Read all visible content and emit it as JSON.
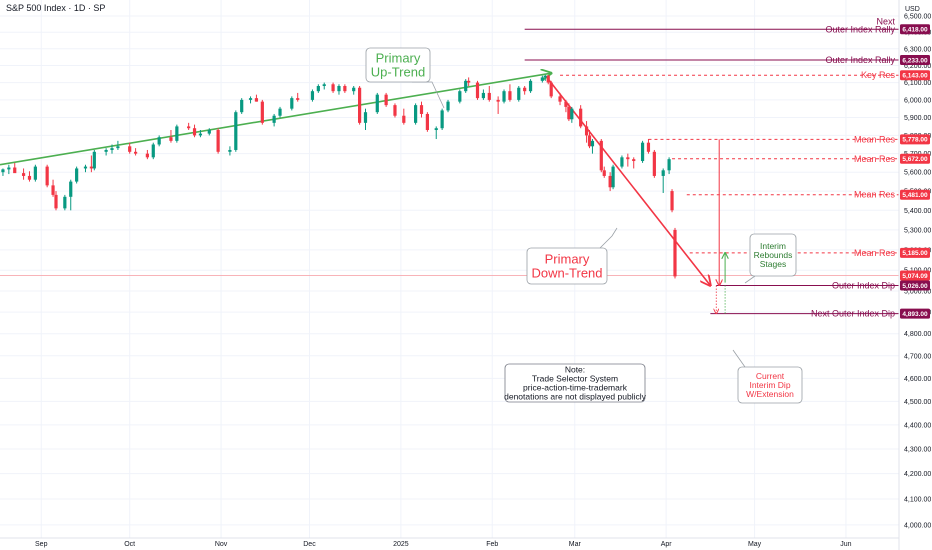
{
  "header": {
    "title": "S&P 500 Index · 1D · SP",
    "currency": "USD"
  },
  "colors": {
    "up": "#089981",
    "down": "#f23645",
    "green_line": "#4caf50",
    "red_line": "#f23645",
    "maroon": "#880e4f",
    "tag_red": "#f23645",
    "grid": "#f0f3fa"
  },
  "chart_data": {
    "type": "candlestick",
    "title": "S&P 500 Index · 1D · SP",
    "ylabel": "USD",
    "ylim": [
      3950,
      6600
    ],
    "y_ticks": [
      {
        "v": 4000,
        "label": "4,000.00"
      },
      {
        "v": 4100,
        "label": "4,100.00"
      },
      {
        "v": 4200,
        "label": "4,200.00"
      },
      {
        "v": 4300,
        "label": "4,300.00"
      },
      {
        "v": 4400,
        "label": "4,400.00"
      },
      {
        "v": 4500,
        "label": "4,500.00"
      },
      {
        "v": 4600,
        "label": "4,600.00"
      },
      {
        "v": 4700,
        "label": "4,700.00"
      },
      {
        "v": 4800,
        "label": "4,800.00"
      },
      {
        "v": 4900,
        "label": "4,900.00"
      },
      {
        "v": 5000,
        "label": "5,000.00"
      },
      {
        "v": 5100,
        "label": "5,100.00"
      },
      {
        "v": 5200,
        "label": "5,200.00"
      },
      {
        "v": 5300,
        "label": "5,300.00"
      },
      {
        "v": 5400,
        "label": "5,400.00"
      },
      {
        "v": 5500,
        "label": "5,500.00"
      },
      {
        "v": 5600,
        "label": "5,600.00"
      },
      {
        "v": 5700,
        "label": "5,700.00"
      },
      {
        "v": 5800,
        "label": "5,800.00"
      },
      {
        "v": 5900,
        "label": "5,900.00"
      },
      {
        "v": 6000,
        "label": "6,000.00"
      },
      {
        "v": 6100,
        "label": "6,100.00"
      },
      {
        "v": 6200,
        "label": "6,200.00"
      },
      {
        "v": 6300,
        "label": "6,300.00"
      },
      {
        "v": 6400,
        "label": "6,400.00"
      },
      {
        "v": 6500,
        "label": "6,500.00"
      }
    ],
    "x_ticks": [
      {
        "d": "2024-09-01",
        "label": "Sep"
      },
      {
        "d": "2024-10-01",
        "label": "Oct"
      },
      {
        "d": "2024-11-01",
        "label": "Nov"
      },
      {
        "d": "2024-12-01",
        "label": "Dec"
      },
      {
        "d": "2025-01-01",
        "label": "2025"
      },
      {
        "d": "2025-02-01",
        "label": "Feb"
      },
      {
        "d": "2025-03-01",
        "label": "Mar"
      },
      {
        "d": "2025-04-01",
        "label": "Apr"
      },
      {
        "d": "2025-05-01",
        "label": "May"
      },
      {
        "d": "2025-06-01",
        "label": "Jun"
      }
    ],
    "xlim": [
      "2024-08-18",
      "2025-06-19"
    ],
    "candles": [
      [
        "2024-08-19",
        5600,
        5620,
        5580,
        5615
      ],
      [
        "2024-08-21",
        5615,
        5640,
        5590,
        5625
      ],
      [
        "2024-08-23",
        5625,
        5650,
        5600,
        5595
      ],
      [
        "2024-08-26",
        5595,
        5620,
        5560,
        5580
      ],
      [
        "2024-08-28",
        5580,
        5605,
        5550,
        5560
      ],
      [
        "2024-08-30",
        5560,
        5640,
        5550,
        5630
      ],
      [
        "2024-09-03",
        5630,
        5640,
        5520,
        5530
      ],
      [
        "2024-09-05",
        5530,
        5560,
        5470,
        5480
      ],
      [
        "2024-09-06",
        5480,
        5500,
        5400,
        5410
      ],
      [
        "2024-09-09",
        5410,
        5480,
        5400,
        5470
      ],
      [
        "2024-09-11",
        5470,
        5560,
        5400,
        5550
      ],
      [
        "2024-09-13",
        5550,
        5630,
        5540,
        5620
      ],
      [
        "2024-09-16",
        5620,
        5640,
        5600,
        5630
      ],
      [
        "2024-09-18",
        5630,
        5690,
        5600,
        5620
      ],
      [
        "2024-09-19",
        5620,
        5720,
        5610,
        5710
      ],
      [
        "2024-09-23",
        5710,
        5730,
        5690,
        5720
      ],
      [
        "2024-09-25",
        5720,
        5750,
        5700,
        5730
      ],
      [
        "2024-09-27",
        5730,
        5770,
        5720,
        5740
      ],
      [
        "2024-10-01",
        5740,
        5760,
        5700,
        5710
      ],
      [
        "2024-10-03",
        5710,
        5730,
        5690,
        5700
      ],
      [
        "2024-10-07",
        5700,
        5720,
        5670,
        5680
      ],
      [
        "2024-10-09",
        5680,
        5760,
        5670,
        5750
      ],
      [
        "2024-10-11",
        5750,
        5800,
        5740,
        5790
      ],
      [
        "2024-10-15",
        5790,
        5830,
        5760,
        5770
      ],
      [
        "2024-10-17",
        5770,
        5860,
        5760,
        5850
      ],
      [
        "2024-10-21",
        5850,
        5870,
        5830,
        5840
      ],
      [
        "2024-10-23",
        5840,
        5860,
        5790,
        5800
      ],
      [
        "2024-10-25",
        5800,
        5830,
        5790,
        5810
      ],
      [
        "2024-10-28",
        5810,
        5840,
        5800,
        5830
      ],
      [
        "2024-10-31",
        5830,
        5840,
        5700,
        5710
      ],
      [
        "2024-11-04",
        5710,
        5740,
        5690,
        5720
      ],
      [
        "2024-11-06",
        5720,
        5940,
        5710,
        5930
      ],
      [
        "2024-11-08",
        5930,
        6010,
        5920,
        6000
      ],
      [
        "2024-11-11",
        6000,
        6020,
        5980,
        6010
      ],
      [
        "2024-11-13",
        6010,
        6030,
        5990,
        5990
      ],
      [
        "2024-11-15",
        5990,
        6000,
        5860,
        5870
      ],
      [
        "2024-11-19",
        5870,
        5920,
        5850,
        5910
      ],
      [
        "2024-11-21",
        5910,
        5960,
        5900,
        5950
      ],
      [
        "2024-11-25",
        5950,
        6020,
        5940,
        6010
      ],
      [
        "2024-11-27",
        6010,
        6040,
        5990,
        6000
      ],
      [
        "2024-12-02",
        6000,
        6060,
        5990,
        6050
      ],
      [
        "2024-12-04",
        6050,
        6090,
        6040,
        6080
      ],
      [
        "2024-12-06",
        6080,
        6100,
        6060,
        6090
      ],
      [
        "2024-12-09",
        6090,
        6100,
        6040,
        6050
      ],
      [
        "2024-12-11",
        6050,
        6090,
        6030,
        6080
      ],
      [
        "2024-12-13",
        6080,
        6090,
        6040,
        6050
      ],
      [
        "2024-12-16",
        6050,
        6080,
        6030,
        6070
      ],
      [
        "2024-12-18",
        6070,
        6080,
        5860,
        5870
      ],
      [
        "2024-12-20",
        5870,
        5950,
        5830,
        5930
      ],
      [
        "2024-12-24",
        5930,
        6040,
        5920,
        6030
      ],
      [
        "2024-12-27",
        6030,
        6040,
        5960,
        5970
      ],
      [
        "2024-12-30",
        5970,
        5980,
        5900,
        5910
      ],
      [
        "2025-01-02",
        5910,
        5950,
        5860,
        5870
      ],
      [
        "2025-01-06",
        5870,
        5980,
        5860,
        5970
      ],
      [
        "2025-01-08",
        5970,
        5990,
        5900,
        5920
      ],
      [
        "2025-01-10",
        5920,
        5930,
        5820,
        5830
      ],
      [
        "2025-01-13",
        5830,
        5850,
        5780,
        5840
      ],
      [
        "2025-01-15",
        5840,
        5950,
        5830,
        5940
      ],
      [
        "2025-01-17",
        5940,
        6000,
        5930,
        5990
      ],
      [
        "2025-01-21",
        5990,
        6060,
        5980,
        6050
      ],
      [
        "2025-01-23",
        6050,
        6120,
        6040,
        6110
      ],
      [
        "2025-01-24",
        6110,
        6130,
        6080,
        6100
      ],
      [
        "2025-01-27",
        6100,
        6110,
        6000,
        6010
      ],
      [
        "2025-01-29",
        6010,
        6060,
        6000,
        6040
      ],
      [
        "2025-01-31",
        6040,
        6080,
        5990,
        6000
      ],
      [
        "2025-02-03",
        6000,
        6020,
        5920,
        5990
      ],
      [
        "2025-02-05",
        5990,
        6060,
        5980,
        6050
      ],
      [
        "2025-02-07",
        6050,
        6090,
        5990,
        6000
      ],
      [
        "2025-02-10",
        6000,
        6080,
        5990,
        6070
      ],
      [
        "2025-02-12",
        6070,
        6080,
        6030,
        6050
      ],
      [
        "2025-02-14",
        6050,
        6120,
        6040,
        6110
      ],
      [
        "2025-02-18",
        6110,
        6140,
        6100,
        6130
      ],
      [
        "2025-02-19",
        6130,
        6145,
        6110,
        6140
      ],
      [
        "2025-02-20",
        6140,
        6145,
        6090,
        6100
      ],
      [
        "2025-02-21",
        6100,
        6110,
        6010,
        6020
      ],
      [
        "2025-02-24",
        6020,
        6040,
        5970,
        5990
      ],
      [
        "2025-02-26",
        5990,
        6000,
        5930,
        5960
      ],
      [
        "2025-02-27",
        5960,
        5980,
        5880,
        5890
      ],
      [
        "2025-02-28",
        5890,
        5960,
        5870,
        5950
      ],
      [
        "2025-03-03",
        5950,
        5970,
        5840,
        5850
      ],
      [
        "2025-03-05",
        5850,
        5880,
        5760,
        5800
      ],
      [
        "2025-03-06",
        5800,
        5830,
        5730,
        5740
      ],
      [
        "2025-03-07",
        5740,
        5780,
        5700,
        5770
      ],
      [
        "2025-03-10",
        5770,
        5780,
        5600,
        5610
      ],
      [
        "2025-03-11",
        5610,
        5630,
        5570,
        5580
      ],
      [
        "2025-03-13",
        5580,
        5600,
        5500,
        5520
      ],
      [
        "2025-03-14",
        5520,
        5640,
        5510,
        5630
      ],
      [
        "2025-03-17",
        5630,
        5690,
        5620,
        5680
      ],
      [
        "2025-03-19",
        5680,
        5700,
        5630,
        5670
      ],
      [
        "2025-03-21",
        5670,
        5680,
        5620,
        5660
      ],
      [
        "2025-03-24",
        5660,
        5770,
        5650,
        5760
      ],
      [
        "2025-03-26",
        5760,
        5780,
        5700,
        5710
      ],
      [
        "2025-03-28",
        5710,
        5720,
        5570,
        5580
      ],
      [
        "2025-03-31",
        5580,
        5620,
        5490,
        5610
      ],
      [
        "2025-04-02",
        5610,
        5680,
        5590,
        5670
      ],
      [
        "2025-04-03",
        5500,
        5510,
        5390,
        5400
      ],
      [
        "2025-04-04",
        5300,
        5310,
        5060,
        5070
      ]
    ],
    "levels": [
      {
        "value": 6418,
        "label_top": "Next",
        "label": "Outer Index Rally",
        "tag": "6,418.00",
        "style": "solid",
        "color": "#880e4f",
        "label_size": "small"
      },
      {
        "value": 6233,
        "label": "Outer Index Rally",
        "tag": "6,233.00",
        "style": "solid",
        "color": "#880e4f",
        "label_size": "small"
      },
      {
        "value": 6143,
        "label": "Key Res",
        "tag": "6,143.00",
        "style": "dashed",
        "color": "#f23645",
        "label_size": "small"
      },
      {
        "value": 5778,
        "label": "Mean Res",
        "tag": "5,778.00",
        "style": "dashed",
        "color": "#f23645",
        "label_size": "small"
      },
      {
        "value": 5672,
        "label": "Mean Res",
        "tag": "5,672.00",
        "style": "dashed",
        "color": "#f23645",
        "label_size": "small"
      },
      {
        "value": 5481,
        "label": "Mean Res",
        "tag": "5,481.00",
        "style": "dashed",
        "color": "#f23645",
        "label_size": "small"
      },
      {
        "value": 5185,
        "label": "Mean Res",
        "tag": "5,185.00",
        "style": "dashed",
        "color": "#f23645",
        "label_size": "large"
      },
      {
        "value": 5026,
        "label": "Outer Index Dip",
        "tag": "5,026.00",
        "style": "solid",
        "color": "#880e4f",
        "label_size": "large"
      },
      {
        "value": 4893,
        "label": "Next Outer Index Dip",
        "tag": "4,893.00",
        "style": "solid",
        "color": "#880e4f",
        "label_size": "large"
      }
    ],
    "current_price": {
      "value": 5074.09,
      "tag": "5,074.09"
    },
    "trendlines": [
      {
        "name": "up",
        "from": [
          "2024-08-18",
          5640
        ],
        "to": [
          "2025-02-21",
          6155
        ],
        "color": "#4caf50"
      },
      {
        "name": "down",
        "from": [
          "2025-02-20",
          6120
        ],
        "to": [
          "2025-04-16",
          5026
        ],
        "color": "#f23645"
      }
    ],
    "annotations": {
      "primary_up": {
        "lines": [
          "Primary",
          "Up-Trend"
        ]
      },
      "primary_down": {
        "lines": [
          "Primary",
          "Down-Trend"
        ]
      },
      "interim_rebounds": {
        "lines": [
          "Interim",
          "Rebounds",
          "Stages"
        ]
      },
      "current_dip": {
        "lines": [
          "Current",
          "Interim Dip",
          "W/Extension"
        ]
      },
      "note": {
        "lines": [
          "Note:",
          "Trade Selector System",
          "price-action-time-trademark",
          "denotations are not displayed publicly"
        ]
      }
    },
    "grid": true
  }
}
